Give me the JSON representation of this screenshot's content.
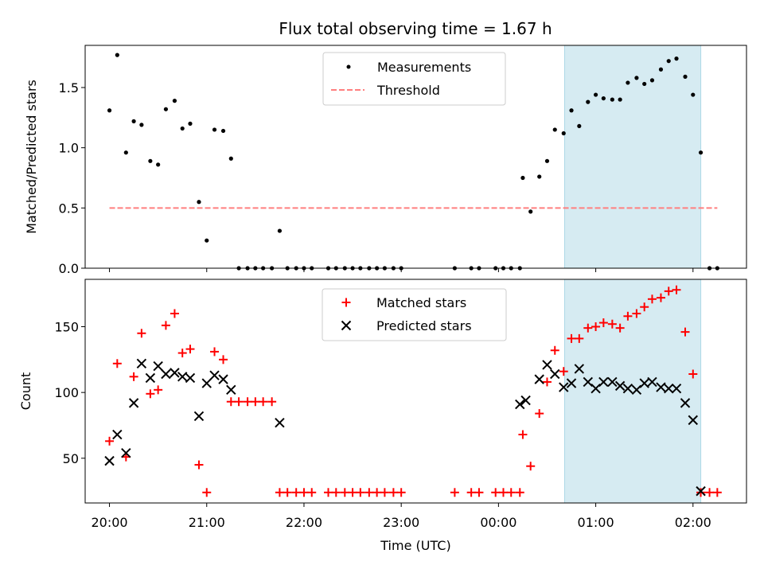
{
  "figure": {
    "title": "Flux total observing time = 1.67 h",
    "xlabel": "Time (UTC)"
  },
  "chart_data": [
    {
      "type": "scatter",
      "title": "Flux total observing time = 1.67 h",
      "ylabel": "Matched/Predicted stars",
      "xlabel": "",
      "ylim": [
        0,
        1.85
      ],
      "yticks": [
        0.0,
        0.5,
        1.0,
        1.5
      ],
      "ytick_labels": [
        "0.0",
        "0.5",
        "1.0",
        "1.5"
      ],
      "x_unit": "hours after 20:00 UTC",
      "highlight_span": {
        "x0": 4.68,
        "x1": 6.08,
        "color": "#add8e6"
      },
      "legend": {
        "position": "top-center",
        "entries": [
          "Measurements",
          "Threshold"
        ]
      },
      "threshold": {
        "name": "Threshold",
        "y": 0.5,
        "x0": 0.0,
        "x1": 6.25,
        "color": "#ff7f7f",
        "style": "dashed"
      },
      "series": [
        {
          "name": "Measurements",
          "marker": "dot",
          "color": "#000000",
          "points": [
            [
              0.0,
              1.31
            ],
            [
              0.08,
              1.77
            ],
            [
              0.17,
              0.96
            ],
            [
              0.25,
              1.22
            ],
            [
              0.33,
              1.19
            ],
            [
              0.42,
              0.89
            ],
            [
              0.5,
              0.86
            ],
            [
              0.58,
              1.32
            ],
            [
              0.67,
              1.39
            ],
            [
              0.75,
              1.16
            ],
            [
              0.83,
              1.2
            ],
            [
              0.92,
              0.55
            ],
            [
              1.0,
              0.23
            ],
            [
              1.08,
              1.15
            ],
            [
              1.17,
              1.14
            ],
            [
              1.25,
              0.91
            ],
            [
              1.33,
              0.0
            ],
            [
              1.42,
              0.0
            ],
            [
              1.5,
              0.0
            ],
            [
              1.58,
              0.0
            ],
            [
              1.67,
              0.0
            ],
            [
              1.75,
              0.31
            ],
            [
              1.83,
              0.0
            ],
            [
              1.92,
              0.0
            ],
            [
              2.0,
              0.0
            ],
            [
              2.08,
              0.0
            ],
            [
              2.25,
              0.0
            ],
            [
              2.33,
              0.0
            ],
            [
              2.42,
              0.0
            ],
            [
              2.5,
              0.0
            ],
            [
              2.58,
              0.0
            ],
            [
              2.67,
              0.0
            ],
            [
              2.75,
              0.0
            ],
            [
              2.83,
              0.0
            ],
            [
              2.92,
              0.0
            ],
            [
              3.0,
              0.0
            ],
            [
              3.55,
              0.0
            ],
            [
              3.72,
              0.0
            ],
            [
              3.8,
              0.0
            ],
            [
              3.97,
              0.0
            ],
            [
              4.05,
              0.0
            ],
            [
              4.13,
              0.0
            ],
            [
              4.22,
              0.0
            ],
            [
              4.25,
              0.75
            ],
            [
              4.33,
              0.47
            ],
            [
              4.42,
              0.76
            ],
            [
              4.5,
              0.89
            ],
            [
              4.58,
              1.15
            ],
            [
              4.67,
              1.12
            ],
            [
              4.75,
              1.31
            ],
            [
              4.83,
              1.18
            ],
            [
              4.92,
              1.38
            ],
            [
              5.0,
              1.44
            ],
            [
              5.08,
              1.41
            ],
            [
              5.17,
              1.4
            ],
            [
              5.25,
              1.4
            ],
            [
              5.33,
              1.54
            ],
            [
              5.42,
              1.58
            ],
            [
              5.5,
              1.53
            ],
            [
              5.58,
              1.56
            ],
            [
              5.67,
              1.65
            ],
            [
              5.75,
              1.72
            ],
            [
              5.83,
              1.74
            ],
            [
              5.92,
              1.59
            ],
            [
              6.0,
              1.44
            ],
            [
              6.08,
              0.96
            ],
            [
              6.17,
              0.0
            ],
            [
              6.25,
              0.0
            ]
          ]
        }
      ]
    },
    {
      "type": "scatter",
      "title": "",
      "ylabel": "Count",
      "xlabel": "Time (UTC)",
      "ylim": [
        16,
        186
      ],
      "yticks": [
        50,
        100,
        150
      ],
      "ytick_labels": [
        "50",
        "100",
        "150"
      ],
      "xticks": [
        0,
        1,
        2,
        3,
        4,
        5,
        6
      ],
      "xtick_labels": [
        "20:00",
        "21:00",
        "22:00",
        "23:00",
        "00:00",
        "01:00",
        "02:00"
      ],
      "x_unit": "hours after 20:00 UTC",
      "highlight_span": {
        "x0": 4.68,
        "x1": 6.08,
        "color": "#add8e6"
      },
      "legend": {
        "position": "top-center",
        "entries": [
          "Matched stars",
          "Predicted stars"
        ]
      },
      "series": [
        {
          "name": "Matched stars",
          "marker": "plus",
          "color": "#ff0000",
          "points": [
            [
              0.0,
              63
            ],
            [
              0.08,
              122
            ],
            [
              0.17,
              51
            ],
            [
              0.25,
              112
            ],
            [
              0.33,
              145
            ],
            [
              0.42,
              99
            ],
            [
              0.5,
              102
            ],
            [
              0.58,
              151
            ],
            [
              0.67,
              160
            ],
            [
              0.75,
              130
            ],
            [
              0.83,
              133
            ],
            [
              0.92,
              45
            ],
            [
              1.0,
              24
            ],
            [
              1.08,
              131
            ],
            [
              1.17,
              125
            ],
            [
              1.25,
              93
            ],
            [
              1.33,
              93
            ],
            [
              1.42,
              93
            ],
            [
              1.5,
              93
            ],
            [
              1.58,
              93
            ],
            [
              1.67,
              93
            ],
            [
              1.75,
              24
            ],
            [
              1.83,
              24
            ],
            [
              1.92,
              24
            ],
            [
              2.0,
              24
            ],
            [
              2.08,
              24
            ],
            [
              2.25,
              24
            ],
            [
              2.33,
              24
            ],
            [
              2.42,
              24
            ],
            [
              2.5,
              24
            ],
            [
              2.58,
              24
            ],
            [
              2.67,
              24
            ],
            [
              2.75,
              24
            ],
            [
              2.83,
              24
            ],
            [
              2.92,
              24
            ],
            [
              3.0,
              24
            ],
            [
              3.55,
              24
            ],
            [
              3.72,
              24
            ],
            [
              3.8,
              24
            ],
            [
              3.97,
              24
            ],
            [
              4.05,
              24
            ],
            [
              4.13,
              24
            ],
            [
              4.22,
              24
            ],
            [
              4.25,
              68
            ],
            [
              4.33,
              44
            ],
            [
              4.42,
              84
            ],
            [
              4.5,
              108
            ],
            [
              4.58,
              132
            ],
            [
              4.67,
              116
            ],
            [
              4.75,
              141
            ],
            [
              4.83,
              141
            ],
            [
              4.92,
              149
            ],
            [
              5.0,
              150
            ],
            [
              5.08,
              153
            ],
            [
              5.17,
              152
            ],
            [
              5.25,
              149
            ],
            [
              5.33,
              158
            ],
            [
              5.42,
              160
            ],
            [
              5.5,
              165
            ],
            [
              5.58,
              171
            ],
            [
              5.67,
              172
            ],
            [
              5.75,
              177
            ],
            [
              5.83,
              178
            ],
            [
              5.92,
              146
            ],
            [
              6.0,
              114
            ],
            [
              6.08,
              24
            ],
            [
              6.17,
              24
            ],
            [
              6.25,
              24
            ]
          ]
        },
        {
          "name": "Predicted stars",
          "marker": "x",
          "color": "#000000",
          "points": [
            [
              0.0,
              48
            ],
            [
              0.08,
              68
            ],
            [
              0.17,
              54
            ],
            [
              0.25,
              92
            ],
            [
              0.33,
              122
            ],
            [
              0.42,
              111
            ],
            [
              0.5,
              120
            ],
            [
              0.58,
              114
            ],
            [
              0.67,
              115
            ],
            [
              0.75,
              112
            ],
            [
              0.83,
              111
            ],
            [
              0.92,
              82
            ],
            [
              1.0,
              107
            ],
            [
              1.08,
              113
            ],
            [
              1.17,
              110
            ],
            [
              1.25,
              102
            ],
            [
              1.75,
              77
            ],
            [
              4.22,
              91
            ],
            [
              4.28,
              94
            ],
            [
              4.42,
              110
            ],
            [
              4.5,
              121
            ],
            [
              4.58,
              114
            ],
            [
              4.67,
              104
            ],
            [
              4.75,
              107
            ],
            [
              4.83,
              118
            ],
            [
              4.92,
              108
            ],
            [
              5.0,
              103
            ],
            [
              5.08,
              108
            ],
            [
              5.17,
              108
            ],
            [
              5.25,
              105
            ],
            [
              5.33,
              103
            ],
            [
              5.42,
              102
            ],
            [
              5.5,
              107
            ],
            [
              5.58,
              108
            ],
            [
              5.67,
              104
            ],
            [
              5.75,
              103
            ],
            [
              5.83,
              103
            ],
            [
              5.92,
              92
            ],
            [
              6.0,
              79
            ],
            [
              6.08,
              25
            ]
          ]
        }
      ]
    }
  ]
}
